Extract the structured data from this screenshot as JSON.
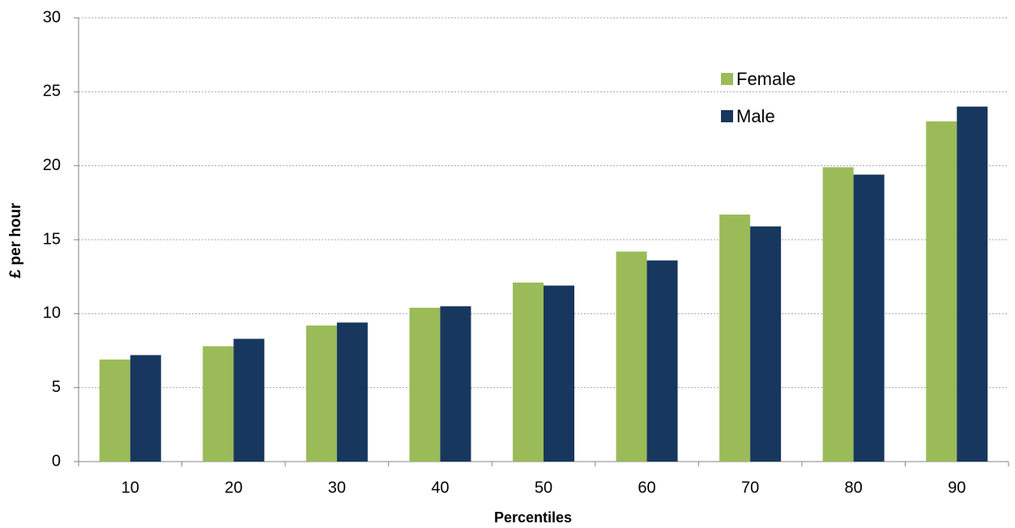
{
  "chart_data": {
    "type": "bar",
    "x_label": "Percentiles",
    "y_label": "£ per hour",
    "categories": [
      "10",
      "20",
      "30",
      "40",
      "50",
      "60",
      "70",
      "80",
      "90"
    ],
    "series": [
      {
        "name": "Female",
        "color": "#9bbb59",
        "values": [
          6.9,
          7.8,
          9.2,
          10.4,
          12.1,
          14.2,
          16.7,
          19.9,
          23.0
        ]
      },
      {
        "name": "Male",
        "color": "#17375e",
        "values": [
          7.2,
          8.3,
          9.4,
          10.5,
          11.9,
          13.6,
          15.9,
          19.4,
          24.0
        ]
      }
    ],
    "ylim": [
      0,
      30
    ],
    "yticks": [
      0,
      5,
      10,
      15,
      20,
      25,
      30
    ],
    "grid": true,
    "legend": "upper right"
  }
}
